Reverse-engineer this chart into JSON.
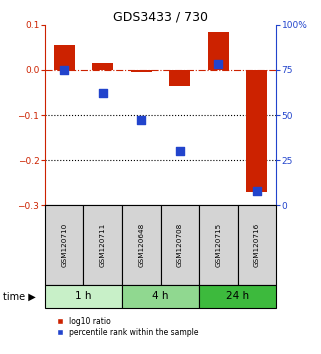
{
  "title": "GDS3433 / 730",
  "samples": [
    "GSM120710",
    "GSM120711",
    "GSM120648",
    "GSM120708",
    "GSM120715",
    "GSM120716"
  ],
  "time_groups": [
    {
      "label": "1 h",
      "start": 0,
      "end": 2,
      "color": "#c8f0c8"
    },
    {
      "label": "4 h",
      "start": 2,
      "end": 4,
      "color": "#90d890"
    },
    {
      "label": "24 h",
      "start": 4,
      "end": 6,
      "color": "#3dba3d"
    }
  ],
  "log10_ratio": [
    0.055,
    0.015,
    -0.005,
    -0.035,
    0.085,
    -0.27
  ],
  "percentile_rank": [
    75,
    62,
    47,
    30,
    78,
    8
  ],
  "bar_color": "#cc2200",
  "dot_color": "#2244cc",
  "ylim_left": [
    -0.3,
    0.1
  ],
  "ylim_right": [
    0,
    100
  ],
  "yticks_left": [
    -0.3,
    -0.2,
    -0.1,
    0.0,
    0.1
  ],
  "yticks_right": [
    0,
    25,
    50,
    75,
    100
  ],
  "ytick_labels_right": [
    "0",
    "25",
    "50",
    "75",
    "100%"
  ],
  "dotted_lines": [
    -0.1,
    -0.2
  ],
  "bar_width": 0.55,
  "dot_size": 28,
  "bg_color": "#ffffff",
  "time_label": "time",
  "legend_red": "log10 ratio",
  "legend_blue": "percentile rank within the sample",
  "label_bg": "#d4d4d4"
}
